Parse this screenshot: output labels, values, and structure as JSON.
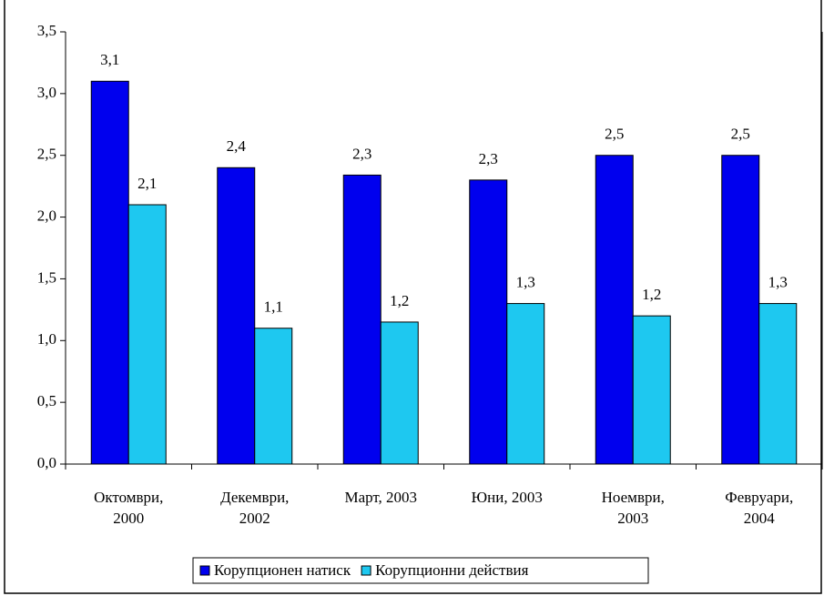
{
  "chart_data": {
    "type": "bar",
    "categories": [
      "Октомври, 2000",
      "Декември, 2002",
      "Март, 2003",
      "Юни, 2003",
      "Ноември, 2003",
      "Февруари, 2004"
    ],
    "series": [
      {
        "name": "Корупционен натиск",
        "color": "#0000ee",
        "values": [
          3.1,
          2.4,
          2.34,
          2.3,
          2.5,
          2.5
        ],
        "value_labels": [
          "3,1",
          "2,4",
          "2,3",
          "2,3",
          "2,5",
          "2,5"
        ]
      },
      {
        "name": "Корупционни действия",
        "color": "#1ec8f0",
        "values": [
          2.1,
          1.1,
          1.15,
          1.3,
          1.2,
          1.3
        ],
        "value_labels": [
          "2,1",
          "1,1",
          "1,2",
          "1,3",
          "1,2",
          "1,3"
        ]
      }
    ],
    "ylim": [
      0,
      3.5
    ],
    "yticks": [
      {
        "value": 0,
        "label": "0,0"
      },
      {
        "value": 0.5,
        "label": "0,5"
      },
      {
        "value": 1,
        "label": "1,0"
      },
      {
        "value": 1.5,
        "label": "1,5"
      },
      {
        "value": 2,
        "label": "2,0"
      },
      {
        "value": 2.5,
        "label": "2,5"
      },
      {
        "value": 3,
        "label": "3,0"
      },
      {
        "value": 3.5,
        "label": "3,5"
      }
    ],
    "legend": "bottom"
  }
}
